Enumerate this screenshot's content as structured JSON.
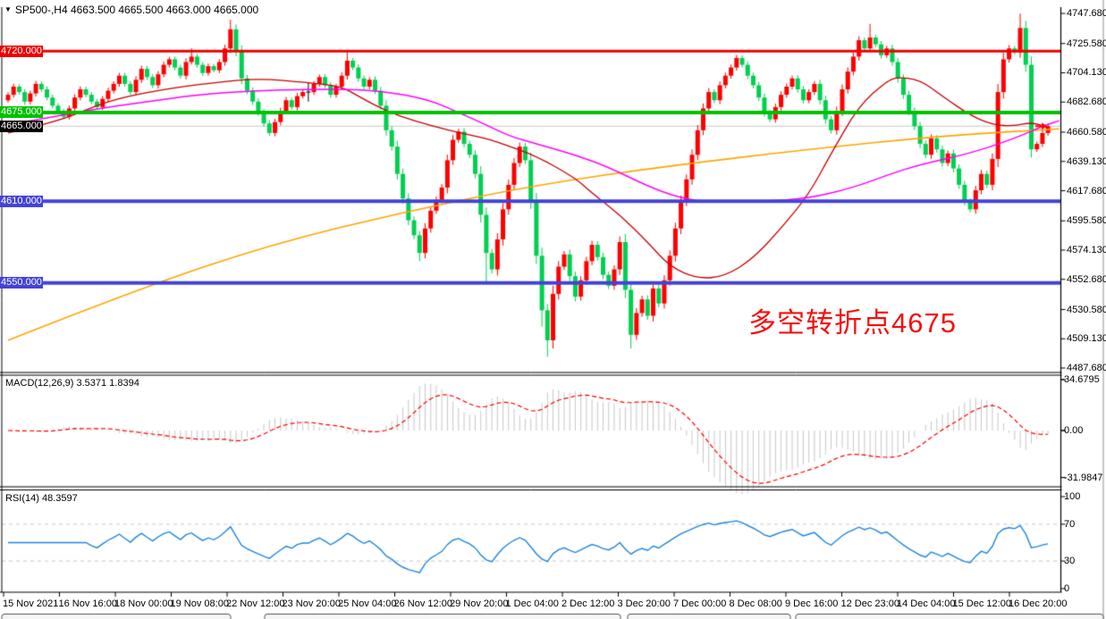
{
  "header": {
    "indicator_arrow": "▼",
    "symbol": "SP500-",
    "timeframe": "H4",
    "title": "SP500-,H4  4663.500 4665.500 4663.000 4665.000"
  },
  "annotation": {
    "text": "多空转折点4675",
    "color": "#f50f0f"
  },
  "price_axis": {
    "ticks": [
      "4747.680",
      "4725.580",
      "4704.130",
      "4682.680",
      "4660.580",
      "4639.130",
      "4617.680",
      "4595.580",
      "4574.130",
      "4552.680",
      "4530.580",
      "4509.130",
      "4487.680"
    ]
  },
  "macd_pane": {
    "label": "MACD(12,26,9) 3.5371 1.8394",
    "ticks": [
      {
        "t": "34.6795",
        "v": 34.6795
      },
      {
        "t": "0.00",
        "v": 0
      },
      {
        "t": "-31.9847",
        "v": -31.9847
      }
    ]
  },
  "rsi_pane": {
    "label": "RSI(14) 48.3597",
    "ticks": [
      {
        "t": "100",
        "v": 100
      },
      {
        "t": "70",
        "v": 70
      },
      {
        "t": "30",
        "v": 30
      },
      {
        "t": "0",
        "v": 0
      }
    ]
  },
  "time_axis": {
    "labels": [
      "15 Nov 2021",
      "16 Nov 16:00",
      "18 Nov 00:00",
      "19 Nov 08:00",
      "22 Nov 12:00",
      "23 Nov 20:00",
      "25 Nov 04:00",
      "26 Nov 12:00",
      "29 Nov 20:00",
      "1 Dec 04:00",
      "2 Dec 12:00",
      "3 Dec 20:00",
      "7 Dec 00:00",
      "8 Dec 08:00",
      "9 Dec 16:00",
      "12 Dec 23:00",
      "14 Dec 04:00",
      "15 Dec 12:00",
      "16 Dec 20:00"
    ]
  },
  "chart_data": {
    "type": "candlestick",
    "title": "SP500- H4 with MACD(12,26,9) and RSI(14)",
    "price_range": [
      4487.68,
      4747.68
    ],
    "current_price": {
      "label": "4665.000",
      "price": 4665.0
    },
    "levels": [
      {
        "price": 4720.0,
        "label": "4720.000",
        "color": "#ee0000",
        "width": 3
      },
      {
        "price": 4675.0,
        "label": "4675.000",
        "color": "#00c000",
        "width": 4
      },
      {
        "price": 4610.0,
        "label": "4610.000",
        "color": "#4343d8",
        "width": 4
      },
      {
        "price": 4550.0,
        "label": "4550.000",
        "color": "#4343d8",
        "width": 4
      }
    ],
    "first_open": 4684,
    "closes": [
      4688,
      4694,
      4690,
      4683,
      4689,
      4696,
      4692,
      4686,
      4680,
      4676,
      4672,
      4678,
      4686,
      4692,
      4688,
      4683,
      4679,
      4685,
      4691,
      4696,
      4702,
      4696,
      4690,
      4699,
      4707,
      4701,
      4695,
      4703,
      4710,
      4714,
      4708,
      4702,
      4712,
      4716,
      4710,
      4704,
      4709,
      4706,
      4712,
      4722,
      4736,
      4720,
      4700,
      4691,
      4683,
      4675,
      4667,
      4660,
      4668,
      4676,
      4684,
      4679,
      4687,
      4690,
      4690,
      4696,
      4701,
      4695,
      4688,
      4694,
      4702,
      4713,
      4708,
      4700,
      4694,
      4699,
      4691,
      4680,
      4662,
      4650,
      4630,
      4612,
      4596,
      4585,
      4572,
      4590,
      4603,
      4611,
      4620,
      4640,
      4655,
      4661,
      4652,
      4644,
      4630,
      4600,
      4572,
      4560,
      4582,
      4604,
      4622,
      4638,
      4650,
      4640,
      4610,
      4570,
      4530,
      4508,
      4542,
      4562,
      4571,
      4555,
      4540,
      4552,
      4566,
      4578,
      4569,
      4556,
      4548,
      4560,
      4580,
      4545,
      4512,
      4528,
      4538,
      4526,
      4546,
      4535,
      4552,
      4570,
      4590,
      4610,
      4626,
      4644,
      4662,
      4678,
      4690,
      4684,
      4695,
      4702,
      4708,
      4715,
      4710,
      4702,
      4695,
      4686,
      4675,
      4670,
      4679,
      4688,
      4694,
      4700,
      4692,
      4684,
      4690,
      4696,
      4684,
      4670,
      4662,
      4676,
      4692,
      4705,
      4716,
      4728,
      4722,
      4730,
      4725,
      4717,
      4722,
      4712,
      4700,
      4688,
      4676,
      4665,
      4652,
      4644,
      4656,
      4648,
      4638,
      4645,
      4634,
      4622,
      4610,
      4604,
      4618,
      4630,
      4622,
      4641,
      4690,
      4714,
      4722,
      4719,
      4737,
      4710,
      4648,
      4652,
      4660,
      4665
    ],
    "spikes": {
      "33": [
        4722,
        null
      ],
      "40": [
        4743,
        null
      ],
      "54": [
        4697,
        4683
      ],
      "61": [
        4721,
        null
      ],
      "74": [
        null,
        4566
      ],
      "86": [
        null,
        4549
      ],
      "96": [
        null,
        4518
      ],
      "97": [
        null,
        4496
      ],
      "112": [
        null,
        4502
      ],
      "155": [
        4740,
        null
      ],
      "182": [
        4747.5,
        null
      ]
    },
    "ma_fast_red": [
      [
        0,
        4660
      ],
      [
        9,
        4668
      ],
      [
        18,
        4684
      ],
      [
        28,
        4692
      ],
      [
        37,
        4697
      ],
      [
        45,
        4700
      ],
      [
        54,
        4697
      ],
      [
        60,
        4694
      ],
      [
        63,
        4687
      ],
      [
        68,
        4676
      ],
      [
        73,
        4669
      ],
      [
        79,
        4662
      ],
      [
        86,
        4656
      ],
      [
        89,
        4652
      ],
      [
        95,
        4643
      ],
      [
        102,
        4627
      ],
      [
        105,
        4616
      ],
      [
        110,
        4600
      ],
      [
        115,
        4580
      ],
      [
        119,
        4562
      ],
      [
        124,
        4553
      ],
      [
        129,
        4555
      ],
      [
        134,
        4568
      ],
      [
        139,
        4590
      ],
      [
        144,
        4615
      ],
      [
        148,
        4645
      ],
      [
        153,
        4680
      ],
      [
        158,
        4698
      ],
      [
        160,
        4701
      ],
      [
        164,
        4699
      ],
      [
        168,
        4687
      ],
      [
        173,
        4673
      ],
      [
        177,
        4666
      ],
      [
        181,
        4665
      ],
      [
        184,
        4668
      ],
      [
        187,
        4664
      ]
    ],
    "ma_mid_magenta": [
      [
        0,
        4666
      ],
      [
        7,
        4671
      ],
      [
        15,
        4677
      ],
      [
        25,
        4683
      ],
      [
        34,
        4688
      ],
      [
        44,
        4691
      ],
      [
        54,
        4692
      ],
      [
        63,
        4692
      ],
      [
        70,
        4689
      ],
      [
        76,
        4684
      ],
      [
        81,
        4675
      ],
      [
        86,
        4666
      ],
      [
        90,
        4658
      ],
      [
        95,
        4652
      ],
      [
        102,
        4644
      ],
      [
        108,
        4635
      ],
      [
        115,
        4621
      ],
      [
        121,
        4612
      ],
      [
        127,
        4609
      ],
      [
        136,
        4610
      ],
      [
        144,
        4612
      ],
      [
        152,
        4620
      ],
      [
        158,
        4629
      ],
      [
        164,
        4637
      ],
      [
        173,
        4645
      ],
      [
        181,
        4656
      ],
      [
        186,
        4665
      ],
      [
        189,
        4669
      ]
    ],
    "ma_slow_orange": [
      [
        0,
        4508
      ],
      [
        23,
        4545
      ],
      [
        47,
        4578
      ],
      [
        71,
        4602
      ],
      [
        95,
        4622
      ],
      [
        119,
        4636
      ],
      [
        144,
        4648
      ],
      [
        168,
        4658
      ],
      [
        189,
        4663
      ]
    ],
    "macd_params": [
      12,
      26,
      9
    ],
    "macd_display_minmax": [
      -31.9847,
      34.6795
    ],
    "rsi_period": 14,
    "rsi_levels": [
      70,
      30
    ],
    "colors": {
      "up_candle": "#fe0000",
      "down_candle": "#00d050",
      "doji": "#000000",
      "ma_fast": "#cc0000",
      "ma_mid": "#ff00ff",
      "ma_slow": "#ffa500",
      "price_line": "#c8c8c8",
      "macd_hist": "#c8c8c8",
      "macd_signal": "#ff0000",
      "rsi_line": "#1e86e0",
      "dashed_level": "#c8c8c8"
    }
  }
}
